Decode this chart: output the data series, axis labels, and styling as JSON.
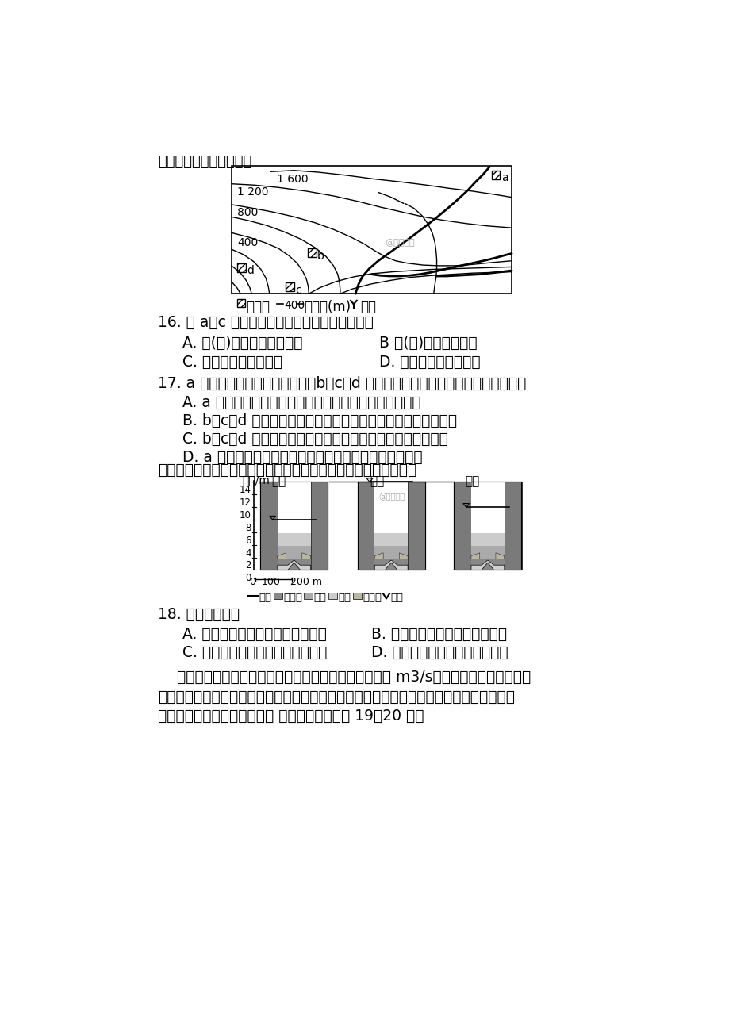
{
  "bg_color": "#ffffff",
  "title_instruction": "读下图，回答下列各题。",
  "q16_stem": "16. 在 a、c 两处最有可能形成的河流堆积地貌是",
  "q16_A": "A. 洪(冲)积扇、河漫滩平原",
  "q16_B": "B 洪(冲)积扇、三角洲",
  "q16_C": "C. 河漫滩平原、三角洲",
  "q16_D": "D. 三角洲、河漫滩平原",
  "q17_stem": "17. a 区建于河流上游地势较低处，b、c、d 区建于河流中下游地势较高处，其原因是",
  "q17_A": "A. a 区位于河流上游地势较高的平坦之处，利于人类定居",
  "q17_B": "B. b、c、d 区位于河流中下游地势较高处，减少河流洪水的威胁",
  "q17_C": "C. b、c、d 区位于河流中下游地势较高处，容易获取淡水资源",
  "q17_D": "D. a 区位于河流上游地势较平坦处，有利于引用河流淡水",
  "flood_intro": "下图示意某河谷断面经历的一次洪水过程。读图，回答下列问题。",
  "q18_stem": "18. 本次洪水（）",
  "q18_A": "A. 水位上升时，河流搬运作用减弱",
  "q18_B": "B. 水位下降时，河流含沙量增加",
  "q18_C": "C. 流量增大时，河流堆积作用增强",
  "q18_D": "D. 河流侵蚀作用使河床加宽变深",
  "para_line1": "    流量是指单位时间内通过某一断面的水量，常用单位为 m3/s。流速是指河流中水质点",
  "para_line2": "在单位时间内移动的距离。流量和流速是影响河流侵蚀、搬运和沉积作用的重要因素。下图",
  "para_line3": "为某河段示意图，箭头表示河 流流向，读图回答 19、20 题。"
}
